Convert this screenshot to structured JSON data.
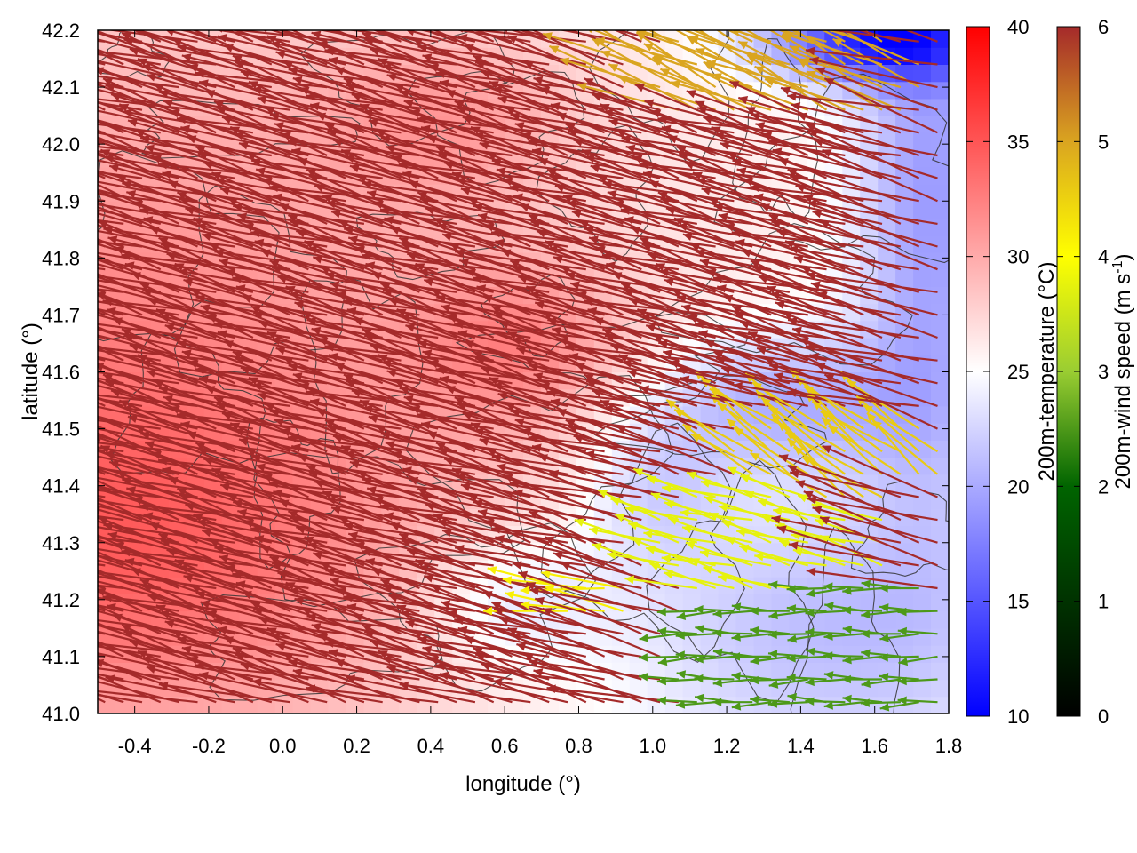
{
  "chart_data": {
    "type": "heatmap",
    "title": "",
    "xlabel": "longitude (°)",
    "ylabel": "latitude (°)",
    "xlim": [
      -0.5,
      1.8
    ],
    "ylim": [
      41.0,
      42.2
    ],
    "xticks": [
      -0.4,
      -0.2,
      0.0,
      0.2,
      0.4,
      0.6,
      0.8,
      1.0,
      1.2,
      1.4,
      1.6,
      1.8
    ],
    "xtick_labels": [
      "-0.4",
      "-0.2",
      "0.0",
      "0.2",
      "0.4",
      "0.6",
      "0.8",
      "1.0",
      "1.2",
      "1.4",
      "1.6",
      "1.8"
    ],
    "yticks": [
      41.0,
      41.1,
      41.2,
      41.3,
      41.4,
      41.5,
      41.6,
      41.7,
      41.8,
      41.9,
      42.0,
      42.1,
      42.2
    ],
    "ytick_labels": [
      "41.0",
      "41.1",
      "41.2",
      "41.3",
      "41.4",
      "41.5",
      "41.6",
      "41.7",
      "41.8",
      "41.9",
      "42.0",
      "42.1",
      "42.2"
    ],
    "temperature_colorbar": {
      "label": "200m-temperature (°C)",
      "range": [
        10,
        40
      ],
      "ticks": [
        10,
        15,
        20,
        25,
        30,
        35,
        40
      ],
      "tick_labels": [
        "10",
        "15",
        "20",
        "25",
        "30",
        "35",
        "40"
      ],
      "colors": [
        "#0000ff",
        "#ffffff",
        "#ff0000"
      ]
    },
    "wind_colorbar": {
      "label": "200m-wind speed (m s",
      "label_sup": "-1",
      "label_end": ")",
      "range": [
        0,
        6
      ],
      "ticks": [
        0,
        1,
        2,
        3,
        4,
        5,
        6
      ],
      "tick_labels": [
        "0",
        "1",
        "2",
        "3",
        "4",
        "5",
        "6"
      ],
      "colors": [
        "#000000",
        "#006400",
        "#9acd32",
        "#ffff00",
        "#daa520",
        "#a52a2a"
      ]
    },
    "temperature_field": {
      "background_c": 25.5,
      "regions": [
        {
          "lon": -0.5,
          "lat": 41.75,
          "rlon": 1.2,
          "rlat": 0.55,
          "value_c": 31
        },
        {
          "lon": -0.45,
          "lat": 41.25,
          "rlon": 0.9,
          "rlat": 0.35,
          "value_c": 32
        },
        {
          "lon": 0.65,
          "lat": 41.65,
          "rlon": 0.3,
          "rlat": 0.15,
          "value_c": 30
        },
        {
          "lon": 0.45,
          "lat": 42.05,
          "rlon": 0.35,
          "rlat": 0.15,
          "value_c": 29
        },
        {
          "lon": 1.45,
          "lat": 41.15,
          "rlon": 0.55,
          "rlat": 0.25,
          "value_c": 21
        },
        {
          "lon": 1.35,
          "lat": 41.55,
          "rlon": 0.35,
          "rlat": 0.12,
          "value_c": 20
        },
        {
          "lon": 1.75,
          "lat": 41.9,
          "rlon": 0.2,
          "rlat": 0.55,
          "value_c": 19
        },
        {
          "lon": 1.6,
          "lat": 42.18,
          "rlon": 0.3,
          "rlat": 0.07,
          "value_c": 13
        },
        {
          "lon": 0.6,
          "lat": 41.2,
          "rlon": 0.25,
          "rlat": 0.12,
          "value_c": 22
        },
        {
          "lon": 1.0,
          "lat": 41.4,
          "rlon": 0.2,
          "rlat": 0.15,
          "value_c": 22
        }
      ]
    },
    "wind_field": {
      "lon_start": -0.48,
      "lon_step": 0.05,
      "lon_count": 46,
      "lat_start": 41.02,
      "lat_step": 0.04,
      "lat_count": 30,
      "arrow_length_scale_deg_per_ms": 0.06,
      "zones": [
        {
          "lon": 1.5,
          "lat": 41.1,
          "rlon": 0.45,
          "rlat": 0.15,
          "speed_ms": 1.8,
          "dir_deg": 180
        },
        {
          "lon": 1.3,
          "lat": 41.3,
          "rlon": 0.35,
          "rlat": 0.1,
          "speed_ms": 3.3,
          "dir_deg": 160
        },
        {
          "lon": 1.5,
          "lat": 41.45,
          "rlon": 0.3,
          "rlat": 0.08,
          "speed_ms": 4.3,
          "dir_deg": 135
        },
        {
          "lon": 0.85,
          "lat": 41.2,
          "rlon": 0.12,
          "rlat": 0.06,
          "speed_ms": 3.8,
          "dir_deg": 170
        },
        {
          "lon": 1.35,
          "lat": 42.12,
          "rlon": 0.4,
          "rlat": 0.1,
          "speed_ms": 4.8,
          "dir_deg": 150
        }
      ],
      "default_speed_ms": 6,
      "default_dir_deg": 160
    }
  }
}
